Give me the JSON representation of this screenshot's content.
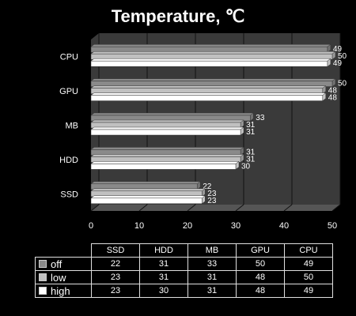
{
  "chart_data": {
    "type": "bar",
    "orientation": "horizontal",
    "title": "Temperature, ℃",
    "categories": [
      "CPU",
      "GPU",
      "MB",
      "HDD",
      "SSD"
    ],
    "series": [
      {
        "name": "off",
        "values": [
          49,
          50,
          33,
          31,
          22
        ],
        "color": "#8a8a8a"
      },
      {
        "name": "low",
        "values": [
          50,
          48,
          31,
          31,
          23
        ],
        "color": "#c0c0c0"
      },
      {
        "name": "high",
        "values": [
          49,
          48,
          31,
          30,
          23
        ],
        "color": "#ffffff"
      }
    ],
    "xlim": [
      0,
      50
    ],
    "xticks": [
      "0",
      "10",
      "20",
      "30",
      "40",
      "50"
    ],
    "grid": true,
    "table": {
      "columns": [
        "SSD",
        "HDD",
        "MB",
        "GPU",
        "CPU"
      ],
      "rows": [
        {
          "name": "off",
          "values": [
            "22",
            "31",
            "33",
            "50",
            "49"
          ]
        },
        {
          "name": "low",
          "values": [
            "23",
            "31",
            "31",
            "48",
            "50"
          ]
        },
        {
          "name": "high",
          "values": [
            "23",
            "30",
            "31",
            "48",
            "49"
          ]
        }
      ]
    }
  }
}
